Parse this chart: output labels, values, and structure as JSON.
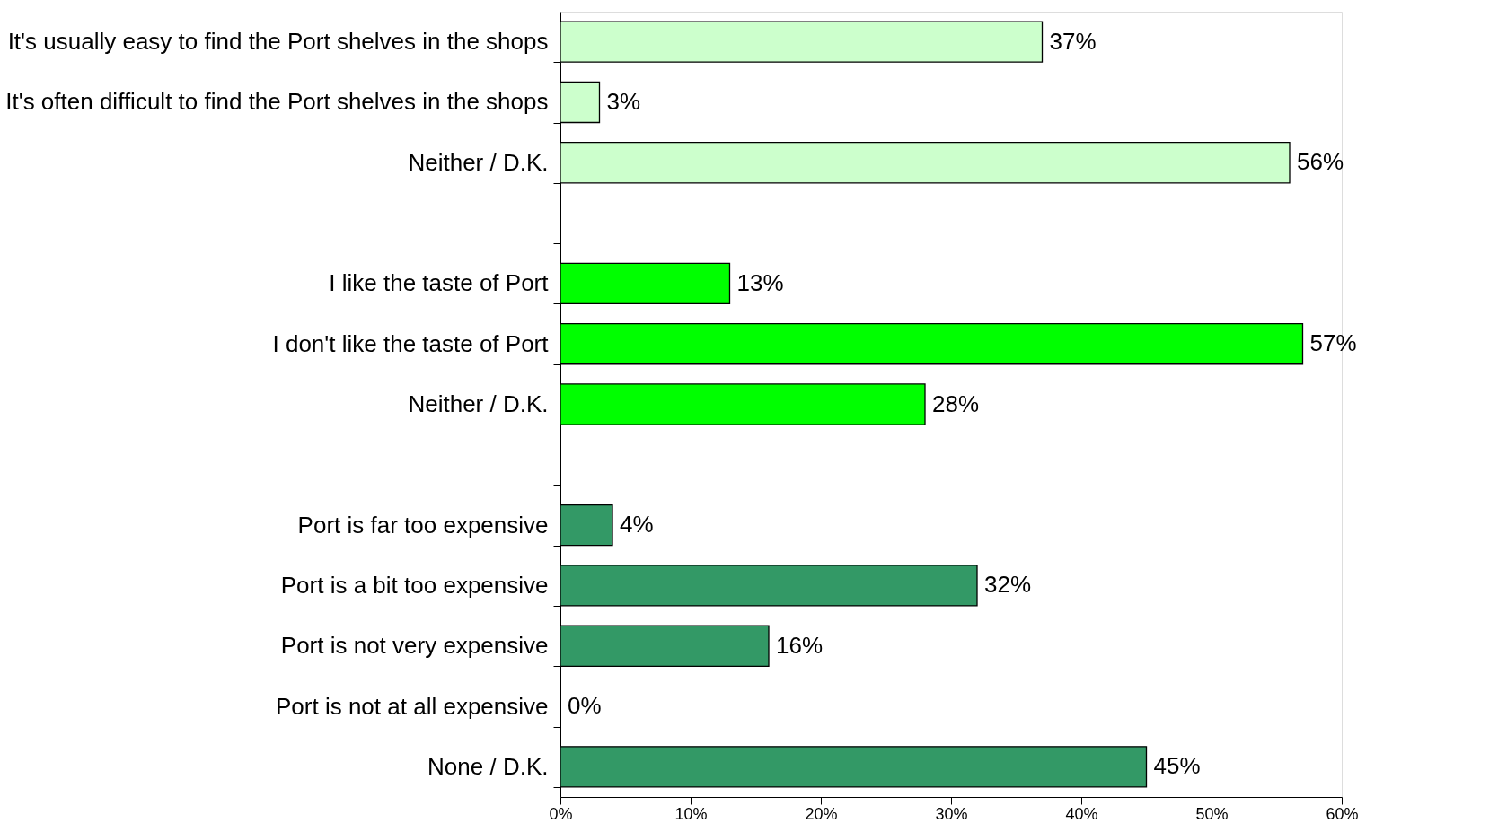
{
  "chart_data": {
    "type": "bar",
    "orientation": "horizontal",
    "categories": [
      "It's usually easy to find the Port shelves in the shops",
      "It's often difficult to find the Port shelves in the shops",
      "Neither / D.K.",
      null,
      "I like the taste of Port",
      "I don't like the taste of Port",
      "Neither / D.K.",
      null,
      "Port is far too expensive",
      "Port is a bit too expensive",
      "Port is not very expensive",
      "Port is not at all expensive",
      "None / D.K."
    ],
    "values": [
      37,
      3,
      56,
      null,
      13,
      57,
      28,
      null,
      4,
      32,
      16,
      0,
      45
    ],
    "colors": [
      "#ccffcc",
      "#ccffcc",
      "#ccffcc",
      null,
      "#00ff00",
      "#00ff00",
      "#00ff00",
      null,
      "#339966",
      "#339966",
      "#339966",
      "#339966",
      "#339966"
    ],
    "value_labels": [
      "37%",
      "3%",
      "56%",
      null,
      "13%",
      "57%",
      "28%",
      null,
      "4%",
      "32%",
      "16%",
      "0%",
      "45%"
    ],
    "xlim": [
      0,
      60
    ],
    "xticks": [
      {
        "value": 0,
        "label": "0%"
      },
      {
        "value": 10,
        "label": "10%"
      },
      {
        "value": 20,
        "label": "20%"
      },
      {
        "value": 30,
        "label": "30%"
      },
      {
        "value": 40,
        "label": "40%"
      },
      {
        "value": 50,
        "label": "50%"
      },
      {
        "value": 60,
        "label": "60%"
      }
    ],
    "relative": false
  }
}
